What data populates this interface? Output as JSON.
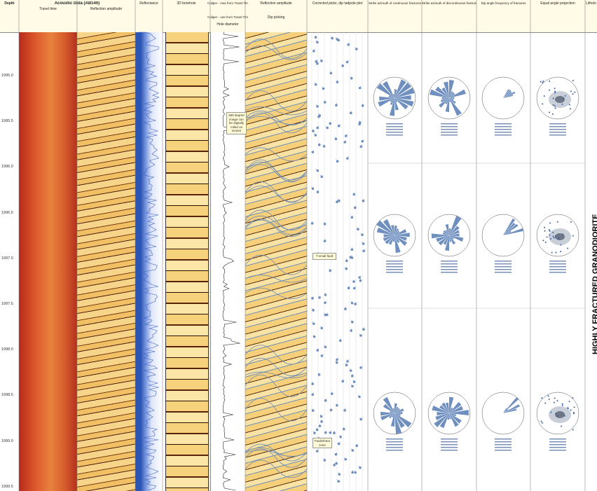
{
  "header": {
    "depth": "Depth",
    "acoustic": "Acoustic Data (AB140)",
    "travel_time": "Travel time",
    "reflection_amplitude": "Reflection amplitude",
    "reflectance": "Reflectance",
    "borehole_3d": "3D borehole",
    "caliper_max": "Caliper - max from Travel Time",
    "caliper_one": "Caliper - one from Travel Time",
    "hole_diameter": "Hole diameter",
    "reflection_amplitude_2": "Reflection amplitude",
    "dip_picking": "Dip picking",
    "tadpole": "Corrected picks, dip tadpole plot",
    "strike_continuous": "Strike azimuth of continuous fractures",
    "strike_discontinuous": "Strike azimuth of discontinuous fractures",
    "dip_frequency": "Dip angle frequency of fractures",
    "equal_angle": "Equal angle projection",
    "lithology": "Litholo"
  },
  "depths": [
    "1995.0",
    "1995.5",
    "1996.0",
    "1996.5",
    "1997.0",
    "1997.5",
    "1998.0",
    "1998.5",
    "1999.0",
    "1999.5"
  ],
  "annotations": {
    "rolled": "360 degree image can be digitally rolled on screen",
    "small_fault": "T-small fault",
    "fault_zone": "Fault/shear zone"
  },
  "lithology_label": "HIGHLY FRACTURED GRANODIORITE"
}
